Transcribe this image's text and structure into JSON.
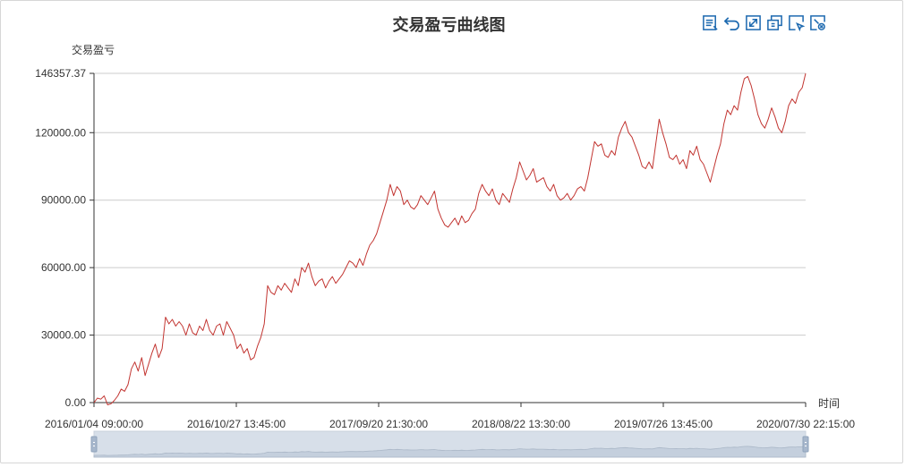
{
  "toolbox": {
    "tools": [
      {
        "name": "data-view-icon"
      },
      {
        "name": "restore-icon"
      },
      {
        "name": "zoom-icon"
      },
      {
        "name": "save-image-icon"
      },
      {
        "name": "zoom-select-icon"
      },
      {
        "name": "zoom-reset-icon"
      }
    ],
    "accent_color": "#1e6ab0"
  },
  "chart_data": {
    "type": "line",
    "title": "交易盈亏曲线图",
    "ylabel": "交易盈亏",
    "xlabel": "时间",
    "ylim": [
      0,
      146357.37
    ],
    "y_ticks": [
      0,
      30000,
      60000,
      90000,
      120000,
      146357.37
    ],
    "y_tick_labels": [
      "0.00",
      "30000.00",
      "60000.00",
      "90000.00",
      "120000.00",
      "146357.37"
    ],
    "x_tick_labels": [
      "2016/01/04 09:00:00",
      "2016/10/27 13:45:00",
      "2017/09/20 21:30:00",
      "2018/08/22 13:30:00",
      "2019/07/26 13:45:00",
      "2020/07/30 22:15:00"
    ],
    "line_color": "#c23531",
    "grid": true,
    "data_zoom": true,
    "series": [
      {
        "values": [
          0,
          2000,
          1500,
          3000,
          -1000,
          -500,
          1000,
          3000,
          6000,
          5000,
          8000,
          15000,
          18000,
          14000,
          20000,
          12000,
          17000,
          22000,
          26000,
          20000,
          24000,
          38000,
          35000,
          37000,
          34000,
          36000,
          34000,
          30000,
          35000,
          31000,
          30000,
          34000,
          32000,
          37000,
          32000,
          30000,
          34000,
          35000,
          30000,
          36000,
          33000,
          30000,
          24000,
          26000,
          22000,
          24000,
          19000,
          20000,
          25000,
          29000,
          35000,
          52000,
          49000,
          48000,
          52000,
          50000,
          53000,
          51000,
          49000,
          55000,
          52000,
          60000,
          58000,
          62000,
          56000,
          52000,
          54000,
          55000,
          51000,
          54000,
          56000,
          53000,
          55000,
          57000,
          60000,
          63000,
          62000,
          60000,
          64000,
          61000,
          66000,
          70000,
          72000,
          75000,
          80000,
          85000,
          90000,
          97000,
          92000,
          96000,
          94000,
          88000,
          90000,
          87000,
          86000,
          88000,
          92000,
          90000,
          88000,
          91000,
          94000,
          86000,
          82000,
          79000,
          78000,
          80000,
          82000,
          79000,
          83000,
          80000,
          81000,
          84000,
          86000,
          93000,
          97000,
          94000,
          92000,
          95000,
          90000,
          88000,
          93000,
          91000,
          89000,
          95000,
          100000,
          107000,
          103000,
          99000,
          101000,
          104000,
          98000,
          99000,
          100000,
          96000,
          94000,
          97000,
          92000,
          90000,
          91000,
          93000,
          90000,
          92000,
          95000,
          96000,
          94000,
          100000,
          108000,
          116000,
          114000,
          115000,
          110000,
          109000,
          112000,
          110000,
          118000,
          122000,
          125000,
          120000,
          118000,
          114000,
          110000,
          105000,
          104000,
          107000,
          104000,
          115000,
          126000,
          120000,
          115000,
          109000,
          108000,
          110000,
          106000,
          108000,
          104000,
          112000,
          110000,
          114000,
          108000,
          106000,
          102000,
          98000,
          104000,
          110000,
          115000,
          124000,
          130000,
          128000,
          132000,
          130000,
          138000,
          144000,
          145000,
          141000,
          135000,
          128000,
          124000,
          122000,
          126000,
          131000,
          127000,
          122000,
          120000,
          125000,
          132000,
          135000,
          133000,
          138000,
          140000,
          146357.37
        ]
      }
    ]
  }
}
